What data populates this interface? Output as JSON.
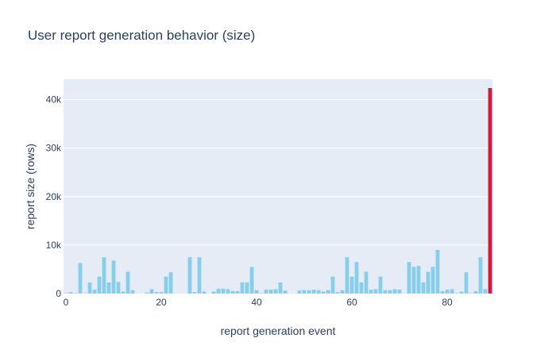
{
  "chart_data": {
    "type": "bar",
    "title": "User report generation behavior (size)",
    "xlabel": "report generation event",
    "ylabel": "report size (rows)",
    "xlim": [
      -0.5,
      89.5
    ],
    "ylim": [
      0,
      44200
    ],
    "x_ticks": [
      {
        "value": 0,
        "label": "0"
      },
      {
        "value": 20,
        "label": "20"
      },
      {
        "value": 40,
        "label": "40"
      },
      {
        "value": 60,
        "label": "60"
      },
      {
        "value": 80,
        "label": "80"
      }
    ],
    "y_ticks": [
      {
        "value": 0,
        "label": "0"
      },
      {
        "value": 10000,
        "label": "10k"
      },
      {
        "value": 20000,
        "label": "20k"
      },
      {
        "value": 30000,
        "label": "30k"
      },
      {
        "value": 40000,
        "label": "40k"
      }
    ],
    "grid": true,
    "colors": {
      "bar": "#87ceeb",
      "highlight": "#dc143c",
      "plot_bg": "#e5ecf6",
      "grid": "#ffffff",
      "text": "#2a3f5f"
    },
    "highlight_index": 89,
    "x": [
      0,
      1,
      2,
      3,
      4,
      5,
      6,
      7,
      8,
      9,
      10,
      11,
      12,
      13,
      14,
      15,
      16,
      17,
      18,
      19,
      20,
      21,
      22,
      23,
      24,
      25,
      26,
      27,
      28,
      29,
      30,
      31,
      32,
      33,
      34,
      35,
      36,
      37,
      38,
      39,
      40,
      41,
      42,
      43,
      44,
      45,
      46,
      47,
      48,
      49,
      50,
      51,
      52,
      53,
      54,
      55,
      56,
      57,
      58,
      59,
      60,
      61,
      62,
      63,
      64,
      65,
      66,
      67,
      68,
      69,
      70,
      71,
      72,
      73,
      74,
      75,
      76,
      77,
      78,
      79,
      80,
      81,
      82,
      83,
      84,
      85,
      86,
      87,
      88,
      89
    ],
    "values": [
      100,
      300,
      100,
      6300,
      100,
      2300,
      800,
      3500,
      7500,
      2300,
      6800,
      2400,
      400,
      4500,
      700,
      0,
      0,
      200,
      900,
      300,
      300,
      3500,
      4400,
      0,
      0,
      0,
      7500,
      300,
      7500,
      400,
      0,
      400,
      1000,
      1000,
      900,
      500,
      500,
      2300,
      2300,
      5500,
      700,
      100,
      800,
      800,
      900,
      2300,
      600,
      0,
      0,
      600,
      700,
      700,
      800,
      700,
      400,
      700,
      3500,
      300,
      700,
      7500,
      3500,
      6500,
      2300,
      4500,
      800,
      900,
      3500,
      700,
      700,
      900,
      800,
      0,
      6500,
      5500,
      5700,
      2300,
      4500,
      5500,
      9000,
      500,
      800,
      900,
      100,
      400,
      4400,
      100,
      500,
      7500,
      900,
      42400
    ]
  }
}
